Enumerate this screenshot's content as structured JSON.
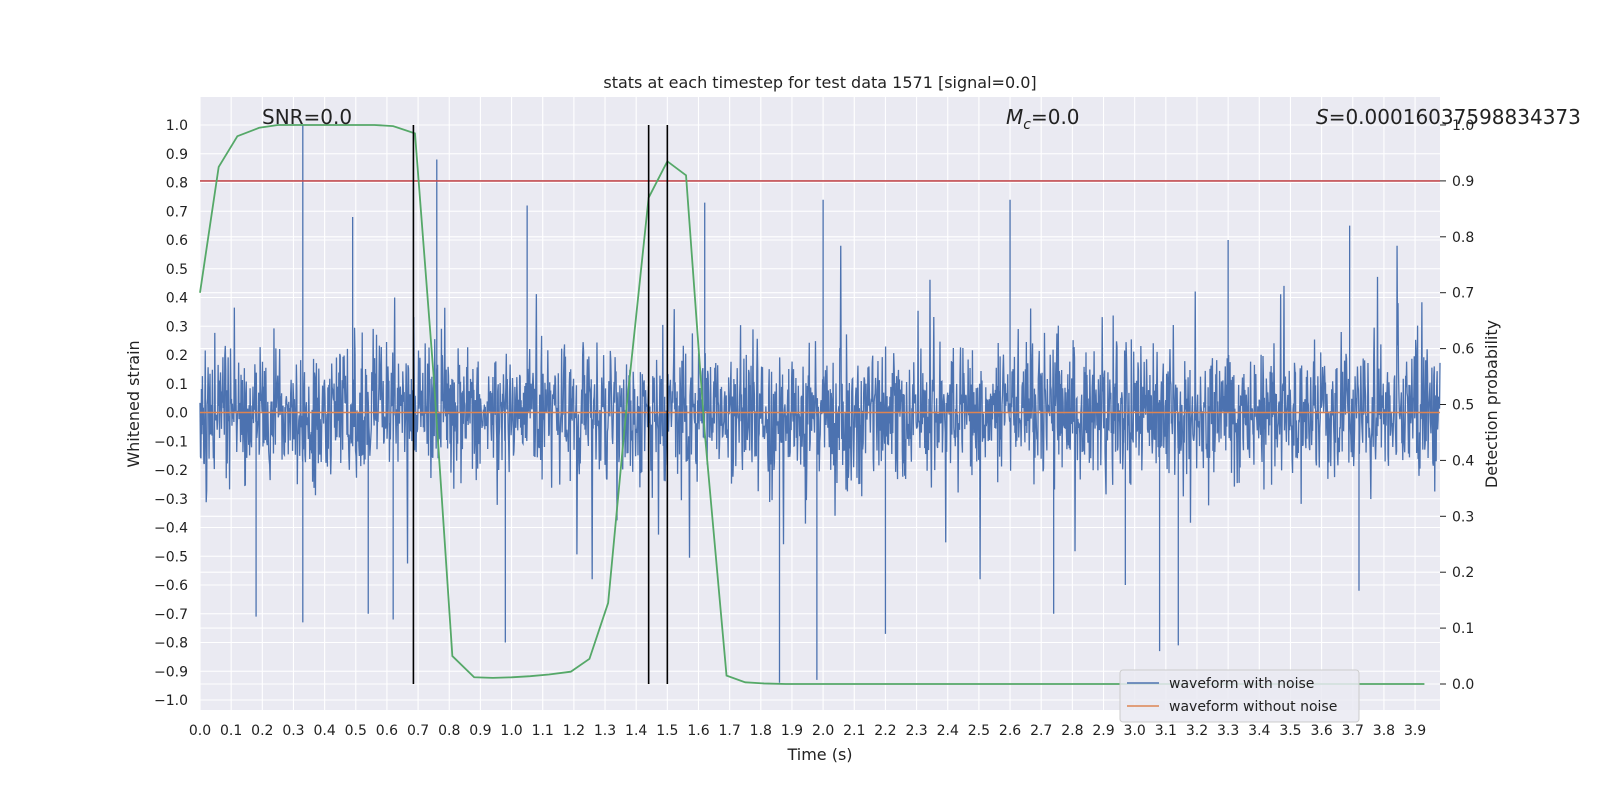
{
  "chart_data": {
    "type": "line",
    "title": "stats at each timestep for test data 1571 [signal=0.0]",
    "xlabel": "Time (s)",
    "ylabel": "Whitened strain",
    "y2label": "Detection probability",
    "xlim": [
      0.0,
      3.98
    ],
    "ylim": [
      -1.05,
      1.1
    ],
    "y2lim": [
      -0.05,
      1.0
    ],
    "x_ticks": [
      "0.0",
      "0.1",
      "0.2",
      "0.3",
      "0.4",
      "0.5",
      "0.6",
      "0.7",
      "0.8",
      "0.9",
      "1.0",
      "1.1",
      "1.2",
      "1.3",
      "1.4",
      "1.5",
      "1.6",
      "1.7",
      "1.8",
      "1.9",
      "2.0",
      "2.1",
      "2.2",
      "2.3",
      "2.4",
      "2.5",
      "2.6",
      "2.7",
      "2.8",
      "2.9",
      "3.0",
      "3.1",
      "3.2",
      "3.3",
      "3.4",
      "3.5",
      "3.6",
      "3.7",
      "3.8",
      "3.9"
    ],
    "y_ticks": [
      "1.0",
      "0.9",
      "0.8",
      "0.7",
      "0.6",
      "0.5",
      "0.4",
      "0.3",
      "0.2",
      "0.1",
      "0.0",
      "−0.1",
      "−0.2",
      "−0.3",
      "−0.4",
      "−0.5",
      "−0.6",
      "−0.7",
      "−0.8",
      "−0.9",
      "−1.0"
    ],
    "y2_ticks": [
      "1.0",
      "0.9",
      "0.8",
      "0.7",
      "0.6",
      "0.5",
      "0.4",
      "0.3",
      "0.2",
      "0.1",
      "0.0"
    ],
    "grid": true,
    "legend": {
      "location": "lower-right",
      "entries": [
        {
          "label": "waveform with noise",
          "color": "#4c72b0"
        },
        {
          "label": "waveform without noise",
          "color": "#dd8452"
        }
      ]
    },
    "annotations": {
      "snr": "SNR=0.0",
      "mc_symbol": "M",
      "mc_sub": "c",
      "mc_value": "=0.0",
      "s_symbol": "S",
      "s_value": "=0.00016037598834373"
    },
    "series": [
      {
        "name": "waveform with noise",
        "color": "#4c72b0",
        "axis": "left",
        "style": "noise",
        "sample_rate": 2048,
        "spikes_up": [
          [
            0.33,
            1.0
          ],
          [
            0.76,
            0.88
          ],
          [
            0.49,
            0.68
          ],
          [
            1.05,
            0.72
          ],
          [
            1.62,
            0.73
          ],
          [
            2.0,
            0.74
          ],
          [
            2.6,
            0.74
          ],
          [
            3.69,
            0.65
          ],
          [
            3.3,
            0.6
          ],
          [
            1.44,
            0.72
          ]
        ],
        "spikes_down": [
          [
            0.33,
            -0.73
          ],
          [
            0.18,
            -0.71
          ],
          [
            0.54,
            -0.7
          ],
          [
            0.62,
            -0.72
          ],
          [
            0.98,
            -0.8
          ],
          [
            1.86,
            -0.94
          ],
          [
            1.98,
            -0.93
          ],
          [
            2.2,
            -0.77
          ],
          [
            3.08,
            -0.83
          ],
          [
            3.14,
            -0.81
          ],
          [
            2.97,
            -0.6
          ],
          [
            3.72,
            -0.62
          ],
          [
            2.74,
            -0.7
          ]
        ]
      },
      {
        "name": "waveform without noise",
        "color": "#dd8452",
        "axis": "left",
        "x": [
          0.0,
          3.98
        ],
        "y": [
          0.0,
          0.0
        ]
      },
      {
        "name": "",
        "color": "#55a868",
        "axis": "right",
        "x": [
          0.0,
          0.06,
          0.12,
          0.19,
          0.25,
          0.31,
          0.37,
          0.44,
          0.5,
          0.56,
          0.62,
          0.69,
          0.75,
          0.81,
          0.88,
          0.94,
          1.0,
          1.06,
          1.12,
          1.19,
          1.25,
          1.31,
          1.37,
          1.44,
          1.5,
          1.56,
          1.62,
          1.69,
          1.75,
          1.81,
          1.88,
          1.94,
          2.0,
          2.5,
          3.0,
          3.5,
          3.93
        ],
        "y": [
          0.7,
          0.925,
          0.98,
          0.995,
          1.0,
          1.0,
          1.0,
          1.0,
          1.0,
          1.0,
          0.998,
          0.985,
          0.55,
          0.05,
          0.012,
          0.011,
          0.012,
          0.014,
          0.017,
          0.022,
          0.045,
          0.145,
          0.5,
          0.87,
          0.935,
          0.91,
          0.45,
          0.015,
          0.003,
          0.001,
          0.0,
          0.0,
          0.0,
          0.0,
          0.0,
          0.0,
          0.0
        ]
      }
    ],
    "threshold_line": {
      "axis": "right",
      "value": 0.9,
      "color": "#c44e52"
    },
    "vertical_lines": {
      "color": "#000000",
      "x": [
        0.685,
        1.44,
        1.5
      ]
    }
  }
}
